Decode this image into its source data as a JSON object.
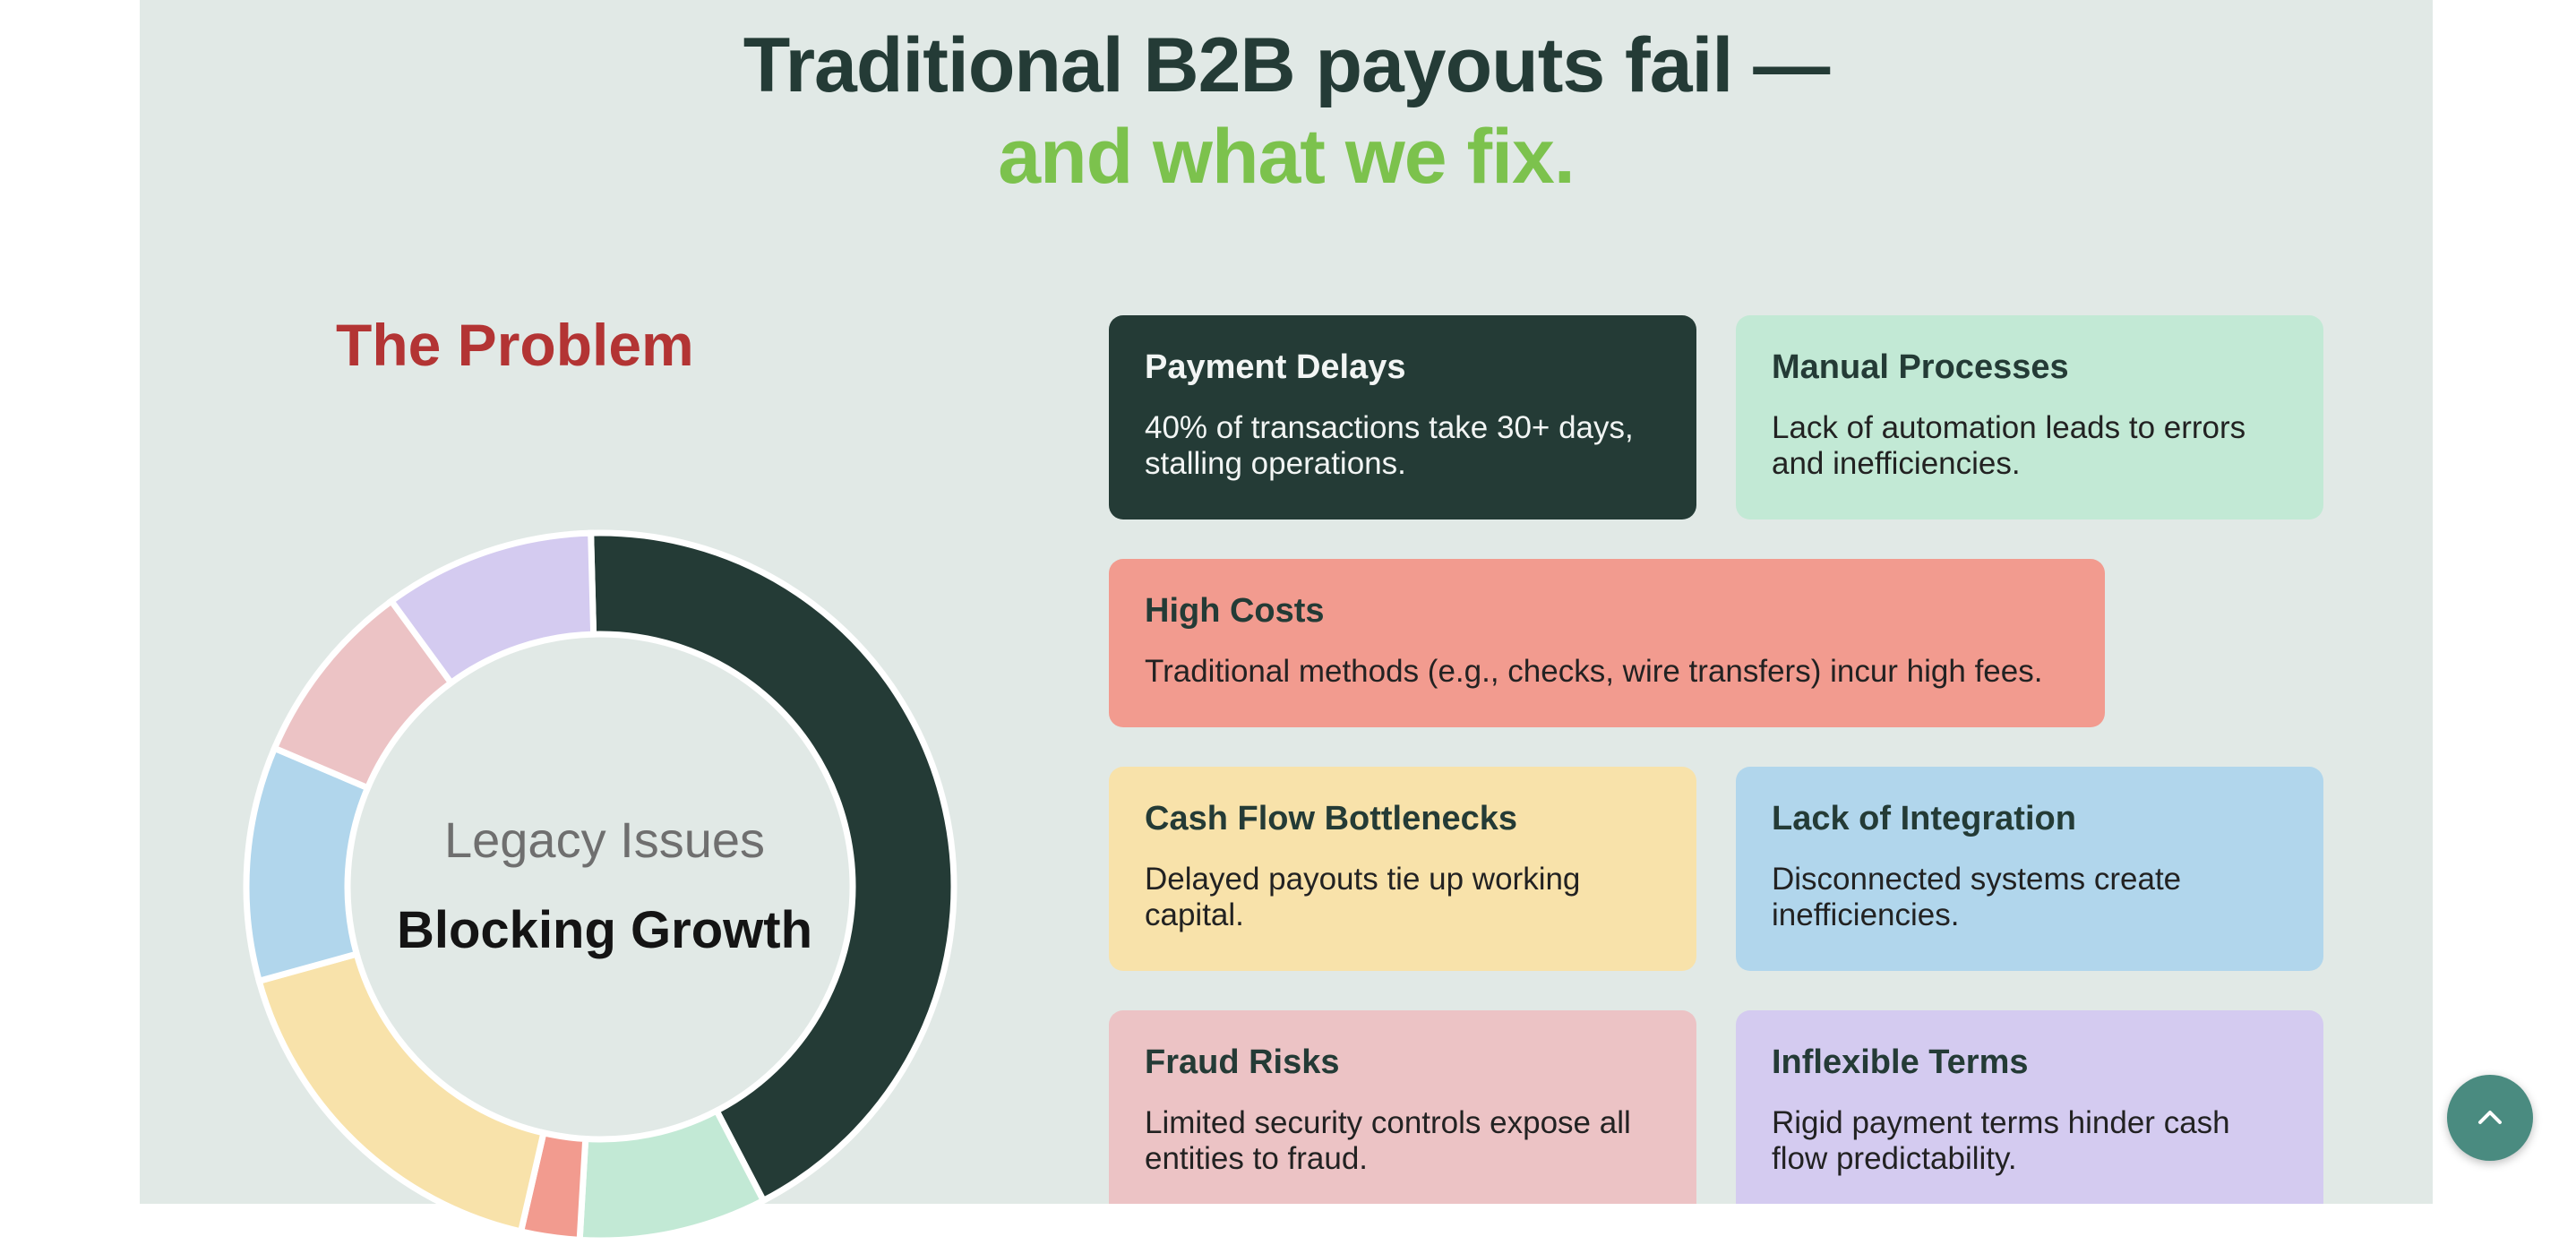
{
  "header": {
    "line1": "Traditional B2B payouts fail —",
    "line2": "and what we fix."
  },
  "problem": {
    "title": "The Problem",
    "donut": {
      "label_top": "Legacy Issues",
      "label_bottom": "Blocking Growth",
      "segments_percent": [
        40,
        8,
        2.5,
        16,
        10,
        8,
        9
      ],
      "colors": [
        "#243b36",
        "#c2e9d5",
        "#f29b8f",
        "#f8e2aa",
        "#b1d6ec",
        "#ecc3c5",
        "#d4cbf0"
      ]
    }
  },
  "cards": [
    {
      "title": "Payment Delays",
      "desc": "40% of transactions take 30+ days, stalling operations.",
      "bg": "#243b36"
    },
    {
      "title": "Manual Processes",
      "desc": "Lack of automation leads to errors and inefficiencies.",
      "bg": "#c2e9d5"
    },
    {
      "title": "High Costs",
      "desc": "Traditional methods (e.g., checks, wire transfers) incur high fees.",
      "bg": "#f29b8f"
    },
    {
      "title": "Cash Flow Bottlenecks",
      "desc": "Delayed payouts tie up working capital.",
      "bg": "#f8e2aa"
    },
    {
      "title": "Lack of Integration",
      "desc": "Disconnected systems create inefficiencies.",
      "bg": "#b1d6ec"
    },
    {
      "title": "Fraud Risks",
      "desc": "Limited security controls expose all entities to fraud.",
      "bg": "#ecc3c5"
    },
    {
      "title": "Inflexible Terms",
      "desc": "Rigid payment terms hinder cash flow predictability.",
      "bg": "#d4cbf0"
    }
  ],
  "scroll_top": {
    "icon": "chevron-up-icon"
  }
}
